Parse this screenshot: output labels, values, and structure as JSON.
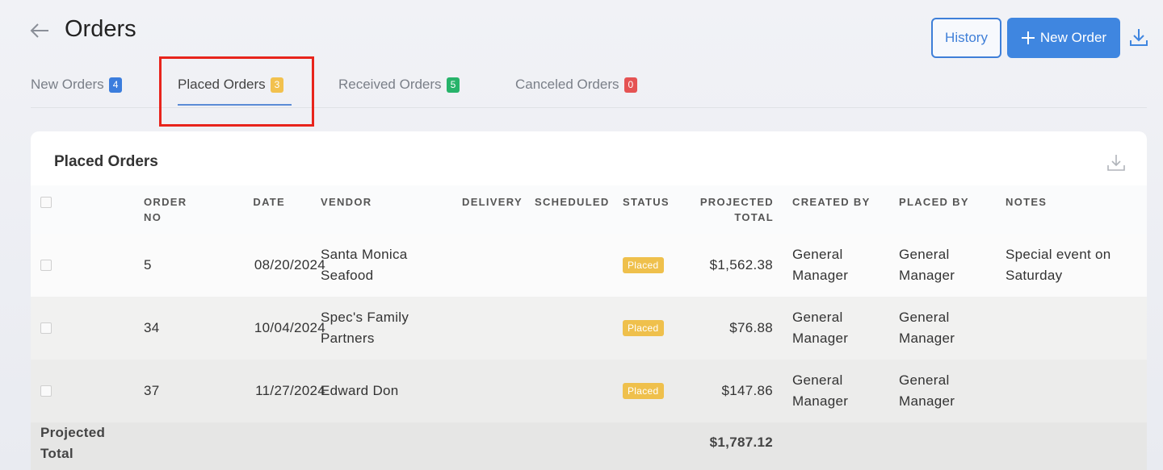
{
  "header": {
    "title": "Orders",
    "buttons": [
      "History",
      "New Order"
    ]
  },
  "tabs": [
    {
      "label": "New Orders",
      "count": 4
    },
    {
      "label": "Placed Orders",
      "count": 3
    },
    {
      "label": "Received Orders",
      "count": 5
    },
    {
      "label": "Canceled Orders",
      "count": 0
    }
  ],
  "panel": {
    "title": "Placed Orders"
  },
  "table": {
    "columns": [
      "ORDER NO",
      "DATE",
      "VENDOR",
      "DELIVERY",
      "SCHEDULED",
      "STATUS",
      "PROJECTED TOTAL",
      "CREATED BY",
      "PLACED BY",
      "NOTES"
    ],
    "rows": [
      {
        "order_no": 5,
        "date": "08/20/2024",
        "vendor": "Santa Monica Seafood",
        "status": "Placed",
        "total": "$1,562.38",
        "created_by": "General Manager",
        "placed_by": "General Manager",
        "notes": "Special event on Saturday"
      },
      {
        "order_no": 34,
        "date": "10/04/2024",
        "vendor": "Spec's Family Partners",
        "status": "Placed",
        "total": "$76.88",
        "created_by": "General Manager",
        "placed_by": "General Manager"
      },
      {
        "order_no": 37,
        "date": "11/27/2024",
        "vendor": "Edward Don",
        "status": "Placed",
        "total": "$147.86",
        "created_by": "General Manager",
        "placed_by": "General Manager"
      }
    ],
    "footer": {
      "label": "Projected Total",
      "total": "$1,787.12"
    }
  }
}
